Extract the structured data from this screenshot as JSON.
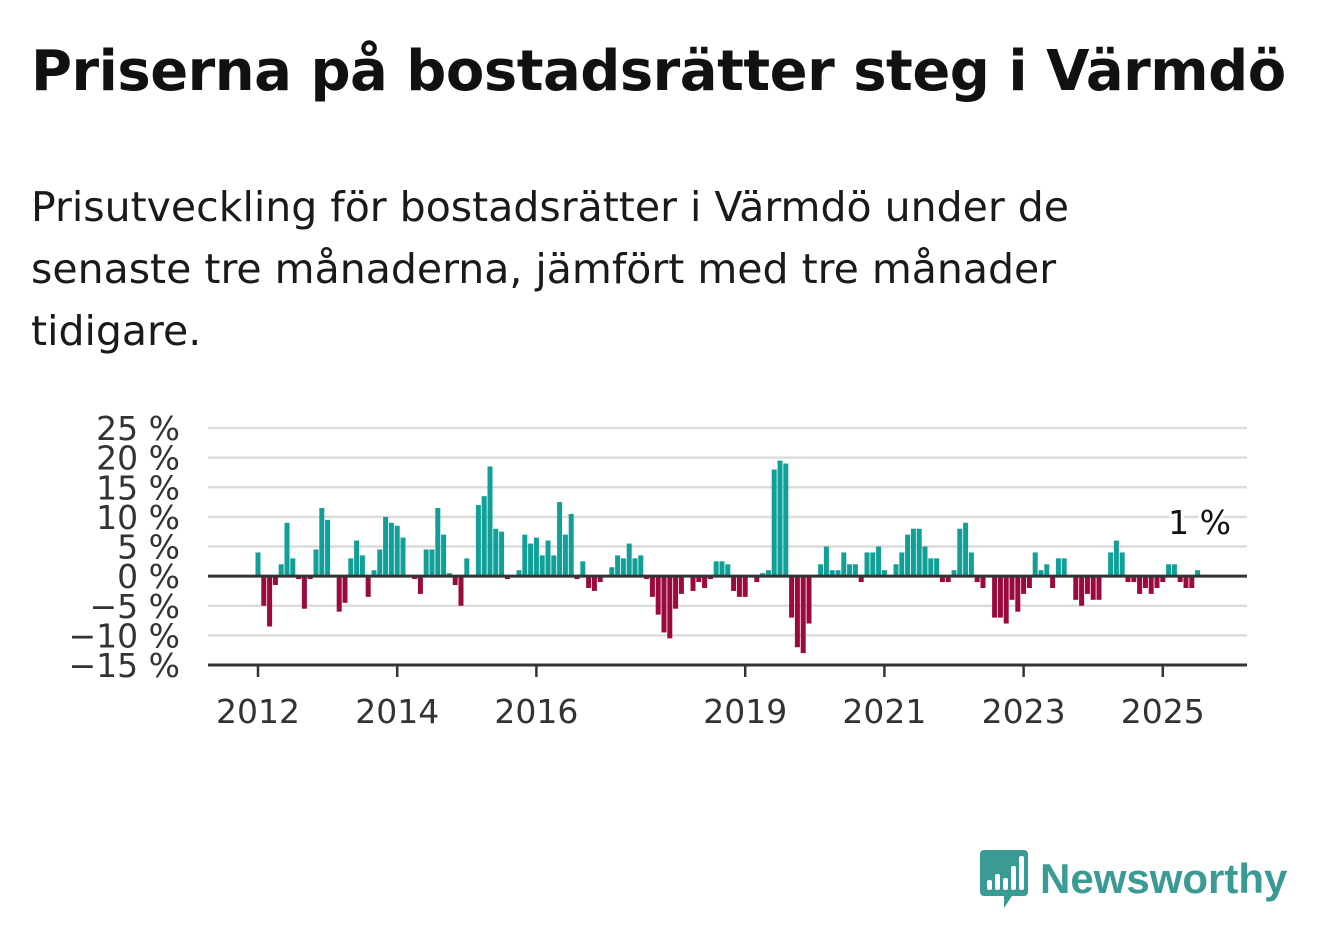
{
  "title": "Priserna på bostadsrätter steg i Värmdö",
  "subtitle": "Prisutveckling för bostadsrätter i Värmdö under de senaste tre månaderna, jämfört med tre månader tidigare.",
  "brand": {
    "name": "Newsworthy",
    "icon": "newsworthy-logo-icon",
    "color": "#3a9a94"
  },
  "chart_data": {
    "type": "bar",
    "ylim": [
      -15,
      25
    ],
    "yticks": [
      -15,
      -10,
      -5,
      0,
      5,
      10,
      15,
      20,
      25
    ],
    "ytick_labels": [
      "−15 %",
      "−10 %",
      "−5 %",
      "0 %",
      "5 %",
      "10 %",
      "15 %",
      "20 %",
      "25 %"
    ],
    "xticks": [
      {
        "label": "2012",
        "value": 2012.0
      },
      {
        "label": "2014",
        "value": 2014.0
      },
      {
        "label": "2016",
        "value": 2016.0
      },
      {
        "label": "2019",
        "value": 2019.0
      },
      {
        "label": "2021",
        "value": 2021.0
      },
      {
        "label": "2023",
        "value": 2023.0
      },
      {
        "label": "2025",
        "value": 2025.0
      }
    ],
    "x_start": 2012.0,
    "x_step_months": 1,
    "grid": true,
    "colors": {
      "positive": "#11a098",
      "negative": "#9b0a3f",
      "grid": "#dcdcdc",
      "axis": "#333333"
    },
    "last_label": "1 %",
    "values": [
      4,
      -5,
      -8.5,
      -1.5,
      2,
      9,
      3,
      -0.5,
      -5.5,
      -0.5,
      4.5,
      11.5,
      9.5,
      0,
      -6,
      -4.5,
      3,
      6,
      3.5,
      -3.5,
      1,
      4.5,
      10,
      9,
      8.5,
      6.5,
      0,
      -0.5,
      -3,
      4.5,
      4.5,
      11.5,
      7,
      0.5,
      -1.5,
      -5,
      3,
      0,
      12,
      13.5,
      18.5,
      8,
      7.5,
      -0.5,
      0,
      1,
      7,
      5.5,
      6.5,
      3.5,
      6,
      3.5,
      12.5,
      7,
      10.5,
      -0.5,
      2.5,
      -2,
      -2.5,
      -1,
      0,
      1.5,
      3.5,
      3,
      5.5,
      3,
      3.5,
      -0.5,
      -3.5,
      -6.5,
      -9.5,
      -10.5,
      -5.5,
      -3,
      0,
      -2.5,
      -1,
      -2,
      -0.5,
      2.5,
      2.5,
      2,
      -2.5,
      -3.5,
      -3.5,
      0,
      -1,
      0.5,
      1,
      18,
      19.5,
      19,
      -7,
      -12,
      -13,
      -8,
      0,
      2,
      5,
      1,
      1,
      4,
      2,
      2,
      -1,
      4,
      4,
      5,
      1,
      0,
      2,
      4,
      7,
      8,
      8,
      5,
      3,
      3,
      -1,
      -1,
      1,
      8,
      9,
      4,
      -1,
      -2,
      0,
      -7,
      -7,
      -8,
      -4,
      -6,
      -3,
      -2,
      4,
      1,
      2,
      -2,
      3,
      3,
      0,
      -4,
      -5,
      -3,
      -4,
      -4,
      0,
      4,
      6,
      4,
      -1,
      -1,
      -3,
      -2,
      -3,
      -2,
      -1,
      2,
      2,
      -1,
      -2,
      -2,
      1
    ]
  }
}
